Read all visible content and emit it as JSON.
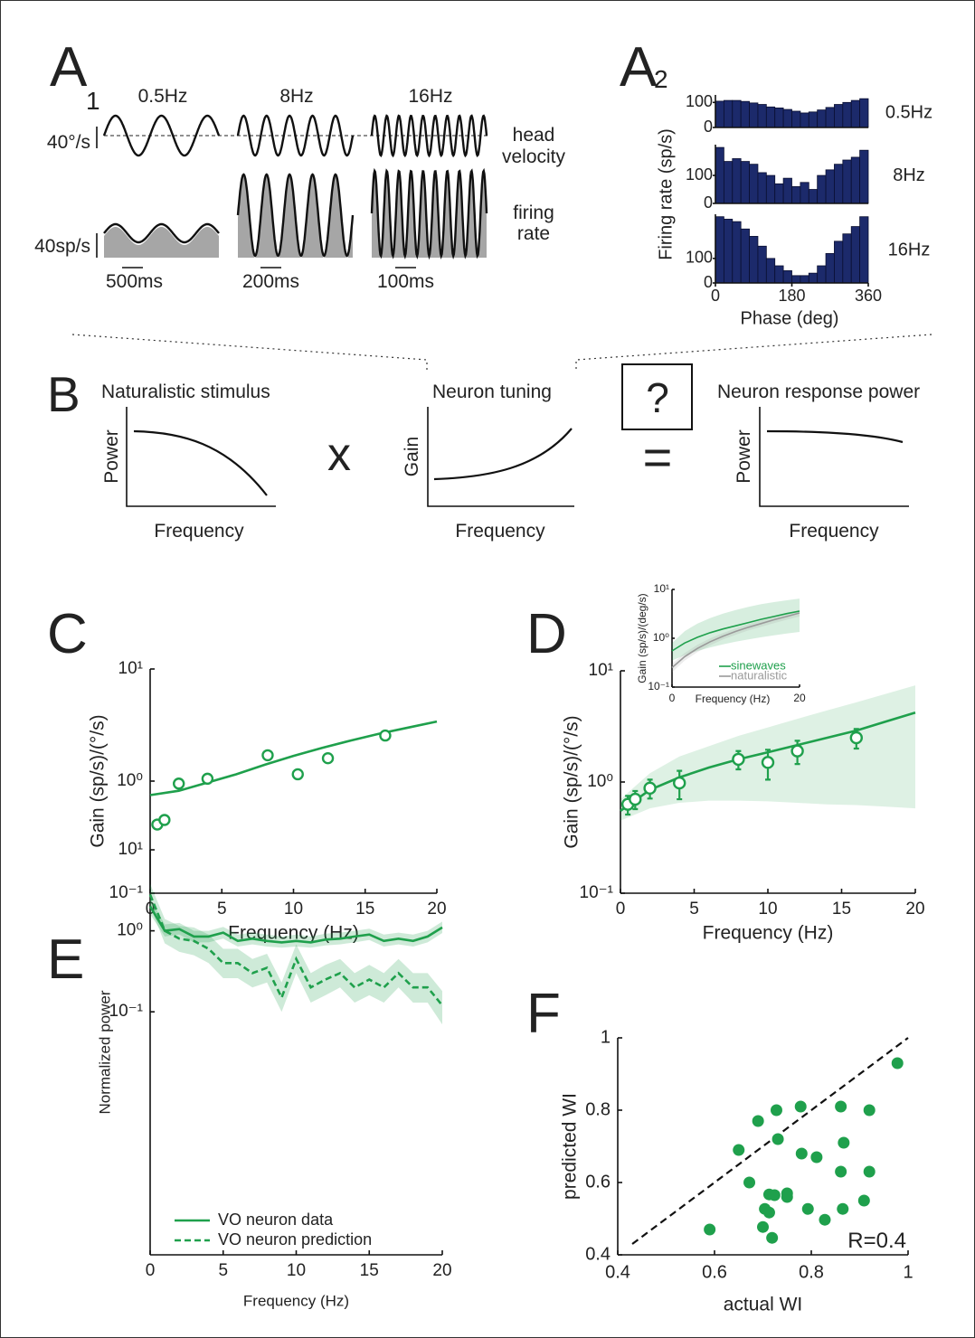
{
  "figure_a1": {
    "label": "A",
    "subscript": "1",
    "frequencies": [
      "0.5Hz",
      "8Hz",
      "16Hz"
    ],
    "velocity_scale": "40°/s",
    "rate_scale": "40sp/s",
    "time_scales": [
      "500ms",
      "200ms",
      "100ms"
    ],
    "trace_labels": [
      [
        "head",
        "velocity"
      ],
      [
        "firing",
        "rate"
      ]
    ]
  },
  "figure_b": {
    "label": "B",
    "plots": [
      {
        "title": "Naturalistic stimulus",
        "ylabel": "Power",
        "xlabel": "Frequency"
      },
      {
        "title": "Neuron tuning",
        "ylabel": "Gain",
        "xlabel": "Frequency"
      },
      {
        "title": "Neuron response power",
        "ylabel": "Power",
        "xlabel": "Frequency"
      }
    ],
    "operators": [
      "x",
      "?",
      "="
    ]
  },
  "chart_data": [
    {
      "type": "histogram",
      "label": "A",
      "subscript": "2",
      "xlabel": "Phase (deg)",
      "ylabel": "Firing rate (sp/s)",
      "xlim": [
        0,
        360
      ],
      "xticks": [
        0,
        180,
        360
      ],
      "color": "#1c2a6b",
      "bins": [
        0,
        20,
        40,
        60,
        80,
        100,
        120,
        140,
        160,
        180,
        200,
        220,
        240,
        260,
        280,
        300,
        320,
        340,
        360
      ],
      "panels": [
        {
          "name": "0.5Hz",
          "ylim": [
            0,
            130
          ],
          "yticks": [
            0,
            100
          ],
          "values": [
            105,
            108,
            108,
            104,
            98,
            92,
            82,
            78,
            72,
            65,
            58,
            62,
            70,
            80,
            92,
            100,
            108,
            115
          ]
        },
        {
          "name": "8Hz",
          "ylim": [
            0,
            210
          ],
          "yticks": [
            0,
            100
          ],
          "values": [
            200,
            150,
            160,
            150,
            140,
            110,
            100,
            70,
            90,
            60,
            75,
            50,
            100,
            120,
            140,
            155,
            165,
            190
          ]
        },
        {
          "name": "16Hz",
          "ylim": [
            0,
            280
          ],
          "yticks": [
            0,
            100
          ],
          "values": [
            270,
            260,
            250,
            220,
            190,
            150,
            100,
            70,
            50,
            30,
            30,
            40,
            70,
            120,
            170,
            200,
            230,
            270
          ]
        }
      ]
    },
    {
      "type": "scatter-fit",
      "label": "C",
      "xlabel": "Frequency (Hz)",
      "ylabel": "Gain (sp/s)/(°/s)",
      "xlim": [
        0,
        20
      ],
      "xticks": [
        0,
        5,
        10,
        15,
        20
      ],
      "ylim": [
        0.1,
        10
      ],
      "log_y": true,
      "yticks": [
        {
          "value": 0.1,
          "label": "10⁻¹"
        },
        {
          "value": 1,
          "label": "10⁰"
        },
        {
          "value": 10,
          "label": "10¹"
        }
      ],
      "color": "#1fa04c",
      "points": {
        "x": [
          0.5,
          1,
          2,
          4,
          8.2,
          10.3,
          12.4,
          16.4
        ],
        "y": [
          0.41,
          0.45,
          0.95,
          1.05,
          1.7,
          1.15,
          1.6,
          2.55
        ]
      },
      "fit": {
        "x": [
          0,
          2,
          4,
          6,
          8,
          10,
          12,
          14,
          16,
          18,
          20
        ],
        "y": [
          0.75,
          0.82,
          0.97,
          1.15,
          1.4,
          1.68,
          1.98,
          2.3,
          2.65,
          3.0,
          3.4
        ]
      }
    },
    {
      "type": "errorbar-fit",
      "label": "D",
      "xlabel": "Frequency (Hz)",
      "ylabel": "Gain (sp/s)/(°/s)",
      "xlim": [
        0,
        20
      ],
      "xticks": [
        0,
        5,
        10,
        15,
        20
      ],
      "ylim": [
        0.1,
        10
      ],
      "log_y": true,
      "yticks": [
        {
          "value": 0.1,
          "label": "10⁻¹"
        },
        {
          "value": 1,
          "label": "10⁰"
        },
        {
          "value": 10,
          "label": "10¹"
        }
      ],
      "color": "#1fa04c",
      "points": {
        "x": [
          0.5,
          1,
          2,
          4,
          8,
          10,
          12,
          16
        ],
        "y": [
          0.63,
          0.7,
          0.88,
          0.98,
          1.6,
          1.5,
          1.9,
          2.5
        ],
        "errors": [
          0.12,
          0.13,
          0.17,
          0.28,
          0.3,
          0.45,
          0.45,
          0.5
        ]
      },
      "fit": {
        "x": [
          0,
          2,
          4,
          6,
          8,
          10,
          12,
          14,
          16,
          18,
          20
        ],
        "y": [
          0.55,
          0.85,
          1.1,
          1.35,
          1.6,
          1.85,
          2.15,
          2.5,
          2.9,
          3.5,
          4.2
        ],
        "lower": [
          0.45,
          0.58,
          0.65,
          0.68,
          0.68,
          0.67,
          0.65,
          0.63,
          0.62,
          0.6,
          0.58
        ],
        "upper": [
          0.7,
          1.2,
          1.7,
          2.1,
          2.6,
          3.1,
          3.7,
          4.4,
          5.2,
          6.2,
          7.4
        ]
      },
      "inset": {
        "xlabel": "Frequency (Hz)",
        "ylabel": "Gain (sp/s)/(deg/s)",
        "xlim": [
          0,
          20
        ],
        "xticks": [
          0,
          20
        ],
        "ylim": [
          0.1,
          10
        ],
        "log_y": true,
        "yticks": [
          {
            "value": 0.1,
            "label": "10⁻¹"
          },
          {
            "value": 1,
            "label": "10⁰"
          },
          {
            "value": 10,
            "label": "10¹"
          }
        ],
        "x": [
          0,
          2,
          4,
          6,
          8,
          10,
          12,
          14,
          16,
          18,
          20
        ],
        "series": [
          {
            "name": "sinewaves",
            "color": "#1fa04c",
            "values": [
              0.55,
              0.8,
              1.05,
              1.3,
              1.55,
              1.8,
              2.1,
              2.45,
              2.8,
              3.2,
              3.6
            ],
            "lower": [
              0.35,
              0.45,
              0.55,
              0.65,
              0.75,
              0.85,
              0.95,
              1.05,
              1.15,
              1.25,
              1.35
            ],
            "upper": [
              0.8,
              1.4,
              2.0,
              2.6,
              3.2,
              3.8,
              4.4,
              5.0,
              5.5,
              6.0,
              6.5
            ]
          },
          {
            "name": "naturalistic",
            "color": "#9a9a9a",
            "values": [
              0.25,
              0.42,
              0.62,
              0.85,
              1.1,
              1.38,
              1.68,
              2.0,
              2.4,
              2.8,
              3.3
            ],
            "lower": [
              0.2,
              0.35,
              0.52,
              0.72,
              0.95,
              1.18,
              1.45,
              1.72,
              2.05,
              2.4,
              2.8
            ],
            "upper": [
              0.3,
              0.5,
              0.74,
              1.0,
              1.28,
              1.6,
              1.95,
              2.32,
              2.8,
              3.25,
              3.85
            ]
          }
        ]
      }
    },
    {
      "type": "line",
      "label": "E",
      "xlabel": "Frequency (Hz)",
      "ylabel": "Normalized power",
      "xlim": [
        0,
        20
      ],
      "xticks": [
        0,
        5,
        10,
        15,
        20
      ],
      "ylim": [
        0.0001,
        10
      ],
      "log_y": true,
      "yticks": [
        {
          "value": 0.1,
          "label": "10⁻¹"
        },
        {
          "value": 1,
          "label": "10⁰"
        },
        {
          "value": 10,
          "label": "10¹"
        }
      ],
      "x": [
        0,
        1,
        2,
        3,
        4,
        5,
        6,
        7,
        8,
        9,
        10,
        11,
        12,
        13,
        14,
        15,
        16,
        17,
        18,
        19,
        20
      ],
      "series": [
        {
          "name": "VO neuron data",
          "color": "#1fa04c",
          "dash": false,
          "values": [
            2.0,
            1.0,
            1.05,
            0.85,
            0.85,
            0.95,
            0.75,
            0.8,
            0.75,
            0.72,
            0.75,
            0.72,
            0.78,
            0.8,
            0.85,
            0.9,
            0.75,
            0.8,
            0.75,
            0.85,
            1.1
          ],
          "lower": [
            1.6,
            0.85,
            0.9,
            0.72,
            0.72,
            0.8,
            0.64,
            0.68,
            0.64,
            0.62,
            0.64,
            0.62,
            0.66,
            0.68,
            0.72,
            0.77,
            0.64,
            0.68,
            0.64,
            0.72,
            0.94
          ],
          "upper": [
            2.5,
            1.2,
            1.25,
            1.0,
            1.0,
            1.12,
            0.9,
            0.95,
            0.9,
            0.85,
            0.9,
            0.85,
            0.92,
            0.95,
            1.0,
            1.06,
            0.9,
            0.95,
            0.9,
            1.0,
            1.3
          ]
        },
        {
          "name": "VO neuron prediction",
          "color": "#1fa04c",
          "dash": true,
          "values": [
            2.8,
            1.0,
            0.8,
            0.75,
            0.6,
            0.4,
            0.4,
            0.3,
            0.35,
            0.15,
            0.45,
            0.2,
            0.25,
            0.3,
            0.2,
            0.25,
            0.2,
            0.3,
            0.2,
            0.2,
            0.12
          ],
          "lower": [
            2.0,
            0.7,
            0.55,
            0.5,
            0.4,
            0.26,
            0.26,
            0.2,
            0.23,
            0.1,
            0.3,
            0.13,
            0.16,
            0.2,
            0.13,
            0.16,
            0.13,
            0.2,
            0.13,
            0.13,
            0.07
          ],
          "upper": [
            3.8,
            1.4,
            1.15,
            1.1,
            0.9,
            0.6,
            0.6,
            0.45,
            0.52,
            0.23,
            0.68,
            0.3,
            0.38,
            0.45,
            0.3,
            0.38,
            0.3,
            0.45,
            0.3,
            0.3,
            0.18
          ]
        }
      ]
    },
    {
      "type": "scatter",
      "label": "F",
      "xlabel": "actual WI",
      "ylabel": "predicted WI",
      "xlim": [
        0.4,
        1
      ],
      "xticks": [
        0.4,
        0.6,
        0.8,
        1
      ],
      "ylim": [
        0.4,
        1
      ],
      "yticks": [
        0.4,
        0.6,
        0.8,
        1
      ],
      "color": "#1fa04c",
      "identity_line": true,
      "annotation": "R=0.4",
      "x": [
        0.978,
        0.69,
        0.728,
        0.778,
        0.861,
        0.92,
        0.65,
        0.731,
        0.78,
        0.811,
        0.867,
        0.672,
        0.861,
        0.92,
        0.713,
        0.724,
        0.75,
        0.75,
        0.793,
        0.865,
        0.909,
        0.828,
        0.704,
        0.713,
        0.7,
        0.719,
        0.59
      ],
      "y": [
        0.93,
        0.77,
        0.8,
        0.81,
        0.81,
        0.8,
        0.69,
        0.72,
        0.68,
        0.67,
        0.71,
        0.6,
        0.63,
        0.63,
        0.567,
        0.565,
        0.56,
        0.57,
        0.527,
        0.527,
        0.55,
        0.497,
        0.527,
        0.517,
        0.477,
        0.447,
        0.47
      ]
    }
  ]
}
